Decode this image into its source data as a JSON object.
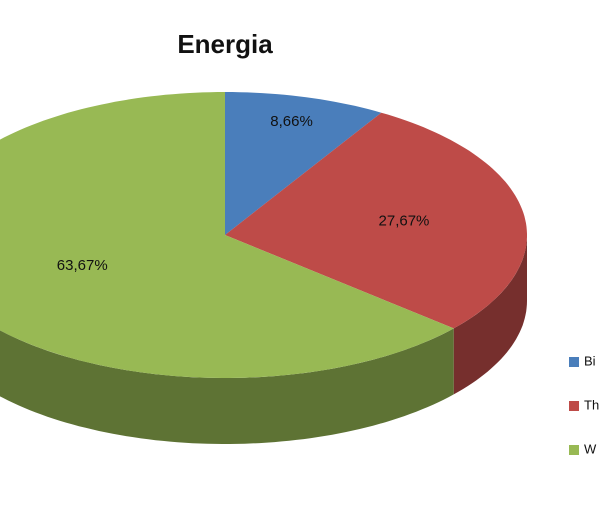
{
  "chart_data": {
    "type": "pie",
    "title": "Energia",
    "categories": [
      "Bi",
      "Th",
      "W"
    ],
    "values": [
      8.66,
      27.67,
      63.67
    ],
    "value_labels": [
      "8,66%",
      "27,67%",
      "63,67%"
    ],
    "colors": [
      "#4a7ebb",
      "#be4b48",
      "#98b954"
    ]
  }
}
